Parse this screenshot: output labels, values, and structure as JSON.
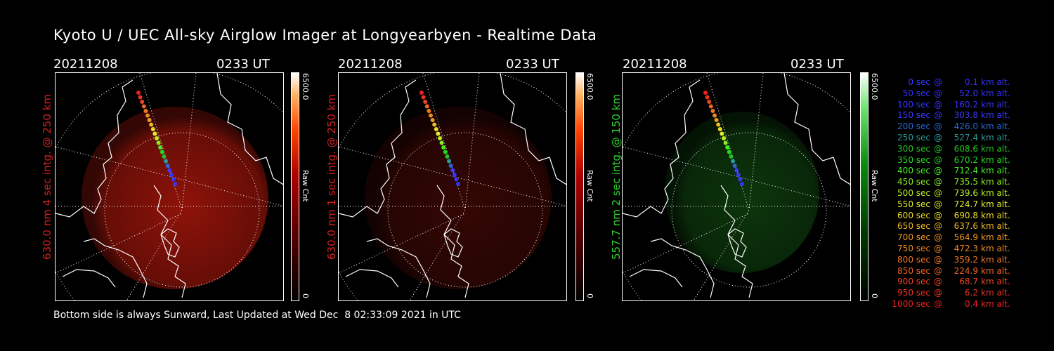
{
  "title": "Kyoto U / UEC All-sky Airglow Imager at Longyearbyen - Realtime Data",
  "panels": [
    {
      "date": "20211208",
      "time": "0233 UT",
      "ylabel": "630.0 nm 4 sec intg. @ 250 km",
      "label_color": "#d22020",
      "glow": "red",
      "glow_intensity": 0.95,
      "colorbar": {
        "max_label": "6500.0",
        "unit_label": "Raw Cnt",
        "min_label": "0"
      }
    },
    {
      "date": "20211208",
      "time": "0233 UT",
      "ylabel": "630.0 nm 1 sec intg. @ 250 km",
      "label_color": "#d22020",
      "glow": "red",
      "glow_intensity": 0.35,
      "colorbar": {
        "max_label": "6500.0",
        "unit_label": "Raw Cnt",
        "min_label": "0"
      }
    },
    {
      "date": "20211208",
      "time": "0233 UT",
      "ylabel": "557.7 nm 2 sec intg. @ 150 km",
      "label_color": "#30d030",
      "glow": "green",
      "glow_intensity": 0.6,
      "colorbar": {
        "max_label": "6500.0",
        "unit_label": "Raw Cnt",
        "min_label": "0"
      }
    }
  ],
  "legend": [
    {
      "sec": "0 sec",
      "alt": "0.1",
      "color": "#3333ff"
    },
    {
      "sec": "50 sec",
      "alt": "52.0",
      "color": "#3333ff"
    },
    {
      "sec": "100 sec",
      "alt": "160.2",
      "color": "#3333ff"
    },
    {
      "sec": "150 sec",
      "alt": "303.8",
      "color": "#3a3aff"
    },
    {
      "sec": "200 sec",
      "alt": "426.0",
      "color": "#2a66d6"
    },
    {
      "sec": "250 sec",
      "alt": "527.4",
      "color": "#2a9a9a"
    },
    {
      "sec": "300 sec",
      "alt": "608.6",
      "color": "#22c322"
    },
    {
      "sec": "350 sec",
      "alt": "670.2",
      "color": "#22d822"
    },
    {
      "sec": "400 sec",
      "alt": "712.4",
      "color": "#44ee22"
    },
    {
      "sec": "450 sec",
      "alt": "735.5",
      "color": "#88ee22"
    },
    {
      "sec": "500 sec",
      "alt": "739.6",
      "color": "#bbee22"
    },
    {
      "sec": "550 sec",
      "alt": "724.7",
      "color": "#ddee33"
    },
    {
      "sec": "600 sec",
      "alt": "690.8",
      "color": "#eedd22"
    },
    {
      "sec": "650 sec",
      "alt": "637.6",
      "color": "#eebb22"
    },
    {
      "sec": "700 sec",
      "alt": "564.9",
      "color": "#ee9922"
    },
    {
      "sec": "750 sec",
      "alt": "472.3",
      "color": "#ee8822"
    },
    {
      "sec": "800 sec",
      "alt": "359.2",
      "color": "#ee7722"
    },
    {
      "sec": "850 sec",
      "alt": "224.9",
      "color": "#ee6622"
    },
    {
      "sec": "900 sec",
      "alt": "68.7",
      "color": "#ee4422"
    },
    {
      "sec": "950 sec",
      "alt": "6.2",
      "color": "#ee3322"
    },
    {
      "sec": "1000 sec",
      "alt": "0.4",
      "color": "#ee2222"
    }
  ],
  "legend_at": "@",
  "legend_unit": "km alt.",
  "footer": "Bottom side is always Sunward, Last Updated at Wed Dec  8 02:33:09 2021 in UTC"
}
